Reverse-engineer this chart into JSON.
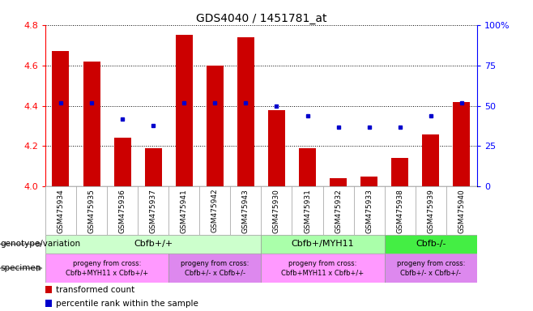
{
  "title": "GDS4040 / 1451781_at",
  "samples": [
    "GSM475934",
    "GSM475935",
    "GSM475936",
    "GSM475937",
    "GSM475941",
    "GSM475942",
    "GSM475943",
    "GSM475930",
    "GSM475931",
    "GSM475932",
    "GSM475933",
    "GSM475938",
    "GSM475939",
    "GSM475940"
  ],
  "red_values": [
    4.67,
    4.62,
    4.24,
    4.19,
    4.75,
    4.6,
    4.74,
    4.38,
    4.19,
    4.04,
    4.05,
    4.14,
    4.26,
    4.42
  ],
  "blue_values": [
    52,
    52,
    42,
    38,
    52,
    52,
    52,
    50,
    44,
    37,
    37,
    37,
    44,
    52
  ],
  "ylim_left": [
    4.0,
    4.8
  ],
  "ylim_right": [
    0,
    100
  ],
  "yticks_left": [
    4.0,
    4.2,
    4.4,
    4.6,
    4.8
  ],
  "yticks_right": [
    0,
    25,
    50,
    75,
    100
  ],
  "ytick_labels_right": [
    "0",
    "25",
    "50",
    "75",
    "100%"
  ],
  "geno_groups": [
    {
      "label": "Cbfb+/+",
      "start": 0,
      "end": 6,
      "color": "#ccffcc"
    },
    {
      "label": "Cbfb+/MYH11",
      "start": 7,
      "end": 10,
      "color": "#aaffaa"
    },
    {
      "label": "Cbfb-/-",
      "start": 11,
      "end": 13,
      "color": "#44ee44"
    }
  ],
  "spec_groups": [
    {
      "label": "progeny from cross:\nCbfb+MYH11 x Cbfb+/+",
      "start": 0,
      "end": 3,
      "color": "#ff99ff"
    },
    {
      "label": "progeny from cross:\nCbfb+/- x Cbfb+/-",
      "start": 4,
      "end": 6,
      "color": "#dd88ee"
    },
    {
      "label": "progeny from cross:\nCbfb+MYH11 x Cbfb+/+",
      "start": 7,
      "end": 10,
      "color": "#ff99ff"
    },
    {
      "label": "progeny from cross:\nCbfb+/- x Cbfb+/-",
      "start": 11,
      "end": 13,
      "color": "#dd88ee"
    }
  ],
  "legend_red": "transformed count",
  "legend_blue": "percentile rank within the sample",
  "bar_color": "#cc0000",
  "dot_color": "#0000cc"
}
